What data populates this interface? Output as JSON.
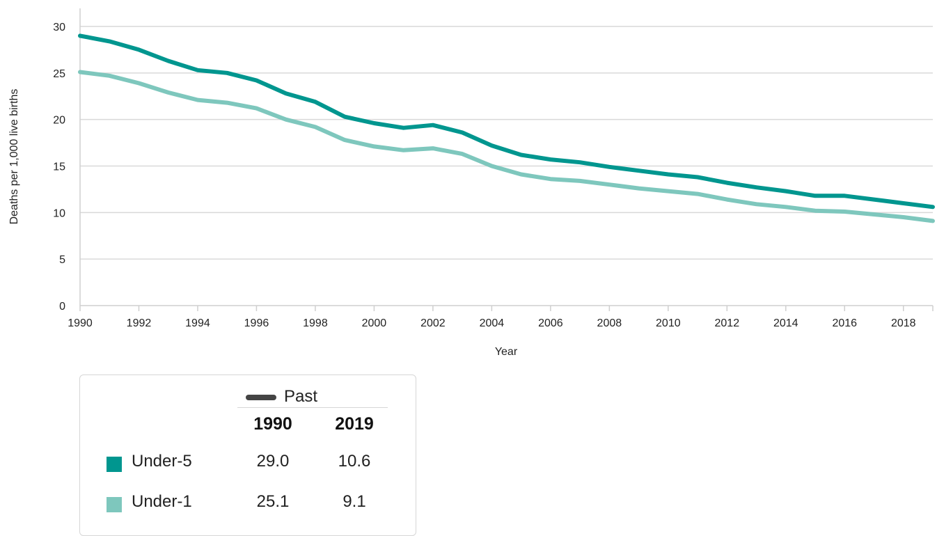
{
  "chart_data": {
    "type": "line",
    "title": "",
    "xlabel": "Year",
    "ylabel": "Deaths per 1,000 live births",
    "xlim": [
      1990,
      2019
    ],
    "ylim": [
      0,
      30
    ],
    "x_ticks": [
      "1990",
      "1992",
      "1994",
      "1996",
      "1998",
      "2000",
      "2002",
      "2004",
      "2006",
      "2008",
      "2010",
      "2012",
      "2014",
      "2016",
      "2018"
    ],
    "y_ticks": [
      "0",
      "5",
      "10",
      "15",
      "20",
      "25",
      "30"
    ],
    "grid": "horizontal",
    "x": [
      1990,
      1991,
      1992,
      1993,
      1994,
      1995,
      1996,
      1997,
      1998,
      1999,
      2000,
      2001,
      2002,
      2003,
      2004,
      2005,
      2006,
      2007,
      2008,
      2009,
      2010,
      2011,
      2012,
      2013,
      2014,
      2015,
      2016,
      2017,
      2018,
      2019
    ],
    "series": [
      {
        "name": "Under-5",
        "color": "#00968f",
        "values": [
          29.0,
          28.4,
          27.5,
          26.3,
          25.3,
          25.0,
          24.2,
          22.8,
          21.9,
          20.3,
          19.6,
          19.1,
          19.4,
          18.6,
          17.2,
          16.2,
          15.7,
          15.4,
          14.9,
          14.5,
          14.1,
          13.8,
          13.2,
          12.7,
          12.3,
          11.8,
          11.8,
          11.4,
          11.0,
          10.6
        ]
      },
      {
        "name": "Under-1",
        "color": "#7ec7bd",
        "values": [
          25.1,
          24.7,
          23.9,
          22.9,
          22.1,
          21.8,
          21.2,
          20.0,
          19.2,
          17.8,
          17.1,
          16.7,
          16.9,
          16.3,
          15.0,
          14.1,
          13.6,
          13.4,
          13.0,
          12.6,
          12.3,
          12.0,
          11.4,
          10.9,
          10.6,
          10.2,
          10.1,
          9.8,
          9.5,
          9.1
        ]
      }
    ]
  },
  "legend": {
    "heading": "Past",
    "heading_color": "#444444",
    "columns": [
      "1990",
      "2019"
    ],
    "rows": [
      {
        "name": "Under-5",
        "color": "#00968f",
        "v1990": "29.0",
        "v2019": "10.6"
      },
      {
        "name": "Under-1",
        "color": "#7ec7bd",
        "v1990": "25.1",
        "v2019": "9.1"
      }
    ]
  }
}
